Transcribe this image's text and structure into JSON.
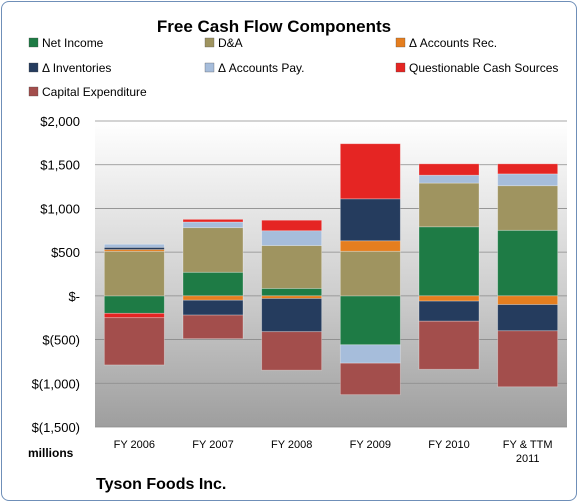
{
  "chart_data": {
    "type": "bar",
    "stacked": true,
    "title": "Free Cash Flow Components",
    "units_label": "millions",
    "footer": "Tyson Foods Inc.",
    "categories": [
      [
        "FY 2006"
      ],
      [
        "FY 2007"
      ],
      [
        "FY 2008"
      ],
      [
        "FY 2009"
      ],
      [
        "FY 2010"
      ],
      [
        "FY & TTM",
        "2011"
      ]
    ],
    "y_ticks": [
      "$(1,500)",
      "$(1,000)",
      "$(500)",
      "$-",
      "$500",
      "$1,000",
      "$1,500",
      "$2,000"
    ],
    "ylim": [
      -1500,
      2000
    ],
    "grid": true,
    "legend_position": "top",
    "series": [
      {
        "name": "Net Income",
        "color": "#1e7b45",
        "values": [
          -200,
          270,
          85,
          -560,
          790,
          750
        ]
      },
      {
        "name": "D&A",
        "color": "#9f9460",
        "values": [
          510,
          510,
          490,
          510,
          500,
          510
        ]
      },
      {
        "name": "Δ Accounts Rec.",
        "color": "#e57e1f",
        "values": [
          20,
          -50,
          -30,
          120,
          -60,
          -100
        ]
      },
      {
        "name": "Δ Inventories",
        "color": "#253c5e",
        "values": [
          25,
          -170,
          -380,
          480,
          -230,
          -300
        ]
      },
      {
        "name": "Δ Accounts Pay.",
        "color": "#a6bddb",
        "values": [
          35,
          65,
          170,
          -210,
          90,
          135
        ]
      },
      {
        "name": "Questionable Cash Sources",
        "color": "#e52523",
        "values": [
          -50,
          30,
          120,
          630,
          130,
          115
        ]
      },
      {
        "name": "Capital Expenditure",
        "color": "#a34e4c",
        "values": [
          -540,
          -270,
          -440,
          -360,
          -550,
          -640
        ]
      }
    ]
  }
}
